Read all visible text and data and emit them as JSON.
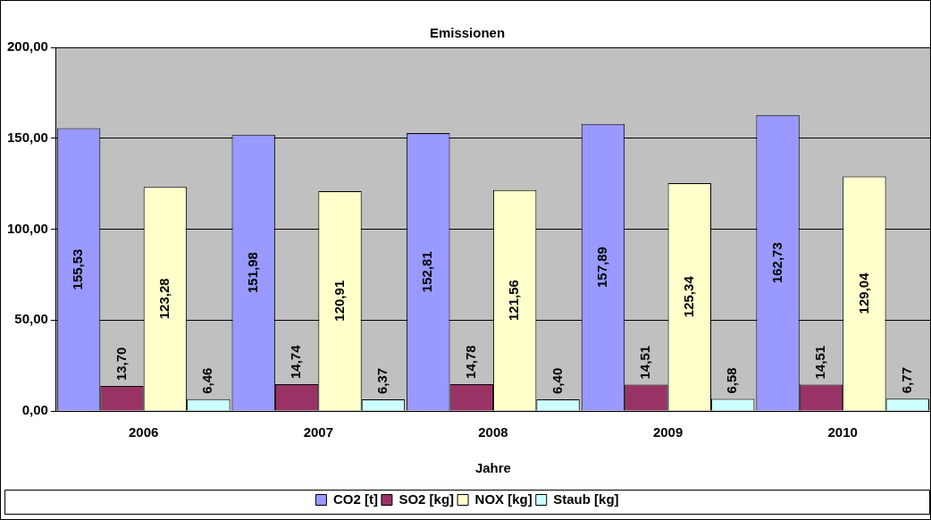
{
  "chart_data": {
    "type": "bar",
    "title": "Emissionen",
    "xlabel": "Jahre",
    "categories": [
      "2006",
      "2007",
      "2008",
      "2009",
      "2010"
    ],
    "series": [
      {
        "name": "CO2 [t]",
        "color": "#9999ff",
        "values": [
          155.53,
          151.98,
          152.81,
          157.89,
          162.73
        ],
        "value_labels": [
          "155,53",
          "151,98",
          "152,81",
          "157,89",
          "162,73"
        ]
      },
      {
        "name": "SO2 [kg]",
        "color": "#993366",
        "values": [
          13.7,
          14.74,
          14.78,
          14.51,
          14.51
        ],
        "value_labels": [
          "13,70",
          "14,74",
          "14,78",
          "14,51",
          "14,51"
        ]
      },
      {
        "name": "NOX [kg]",
        "color": "#ffffcc",
        "values": [
          123.28,
          120.91,
          121.56,
          125.34,
          129.04
        ],
        "value_labels": [
          "123,28",
          "120,91",
          "121,56",
          "125,34",
          "129,04"
        ]
      },
      {
        "name": "Staub [kg]",
        "color": "#ccffff",
        "values": [
          6.46,
          6.37,
          6.4,
          6.58,
          6.77
        ],
        "value_labels": [
          "6,46",
          "6,37",
          "6,40",
          "6,58",
          "6,77"
        ]
      }
    ],
    "ylim": [
      0,
      200
    ],
    "yticks": [
      {
        "value": 0,
        "label": "0,00"
      },
      {
        "value": 50,
        "label": "50,00"
      },
      {
        "value": 100,
        "label": "100,00"
      },
      {
        "value": 150,
        "label": "150,00"
      },
      {
        "value": 200,
        "label": "200,00"
      }
    ],
    "grid": "y",
    "legend": "bottom"
  }
}
